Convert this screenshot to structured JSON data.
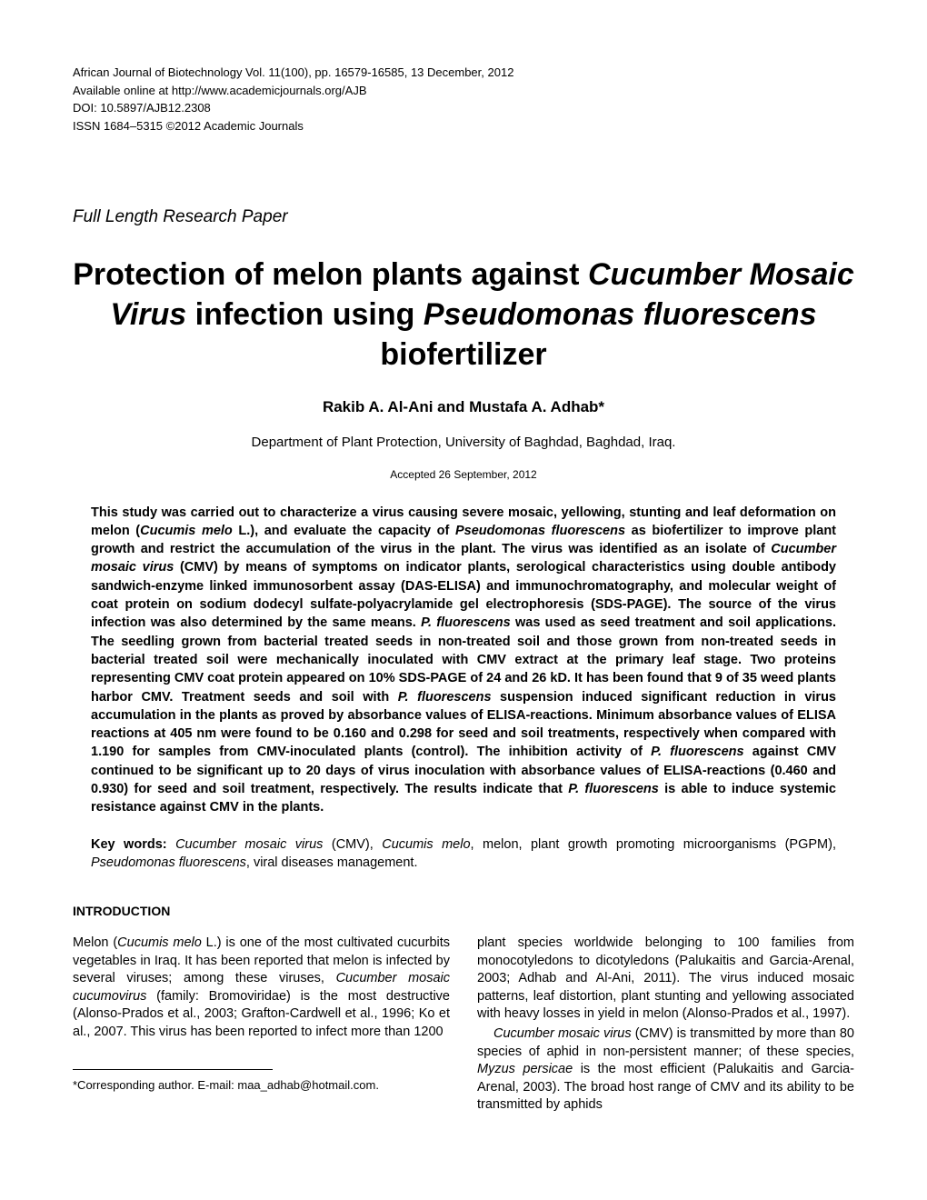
{
  "header": {
    "line1": "African Journal of Biotechnology Vol. 11(100), pp. 16579-16585, 13 December, 2012",
    "line2": "Available online at http://www.academicjournals.org/AJB",
    "line3": "DOI: 10.5897/AJB12.2308",
    "line4": "ISSN 1684–5315 ©2012 Academic Journals"
  },
  "paper_type": "Full Length Research Paper",
  "title": {
    "part1": "Protection of melon plants against ",
    "italic1": "Cucumber Mosaic Virus",
    "part2": " infection using ",
    "italic2": "Pseudomonas fluorescens",
    "part3": " biofertilizer"
  },
  "authors": "Rakib A. Al-Ani and Mustafa A. Adhab*",
  "affiliation": "Department of Plant Protection, University of Baghdad, Baghdad, Iraq.",
  "accepted": "Accepted 26 September, 2012",
  "abstract": {
    "t1": "This study was carried out to characterize a virus causing severe mosaic, yellowing, stunting and leaf deformation on melon (",
    "i1": "Cucumis melo",
    "t2": " L.), and evaluate the capacity of ",
    "i2": "Pseudomonas fluorescens",
    "t3": " as biofertilizer to improve plant growth and restrict the accumulation of the virus in the plant. The virus was identified as an isolate of ",
    "i3": "Cucumber mosaic virus",
    "t4": " (CMV) by means of symptoms on indicator plants, serological characteristics using double antibody sandwich-enzyme linked immunosorbent assay (DAS-ELISA) and immunochromatography, and molecular weight of coat protein on sodium dodecyl sulfate-polyacrylamide gel electrophoresis (SDS-PAGE). The source of the virus infection was also determined by the same means. ",
    "i4": "P. fluorescens",
    "t5": " was used as seed treatment and soil applications. The seedling grown from bacterial treated seeds in non-treated soil and those grown from non-treated seeds in bacterial treated soil were mechanically inoculated with CMV extract at the primary leaf stage. Two proteins representing CMV coat protein appeared on 10% SDS-PAGE of 24 and 26 kD. It has been found that 9 of 35 weed plants harbor CMV. Treatment seeds and soil with ",
    "i5": "P. fluorescens",
    "t6": " suspension induced significant reduction in virus accumulation in the plants as proved by absorbance values of ELISA-reactions. Minimum absorbance values of ELISA reactions at 405 nm were found to be 0.160 and 0.298 for seed and soil treatments, respectively when compared with 1.190 for samples from CMV-inoculated plants (control). The inhibition activity of ",
    "i6": "P. fluorescens",
    "t7": " against CMV continued to be significant up to 20 days of virus inoculation with absorbance values of ELISA-reactions (0.460 and 0.930) for seed and soil treatment, respectively. The results indicate that ",
    "i7": "P. fluorescens",
    "t8": " is able to induce systemic resistance against CMV in the plants."
  },
  "keywords": {
    "label": "Key words:",
    "i1": "Cucumber mosaic virus",
    "t1": " (CMV), ",
    "i2": "Cucumis melo",
    "t2": ", melon, plant growth promoting microorganisms (PGPM), ",
    "i3": "Pseudomonas fluorescens",
    "t3": ", viral diseases management."
  },
  "section_heading": "INTRODUCTION",
  "intro": {
    "col1": {
      "t1": "Melon (",
      "i1": "Cucumis melo",
      "t2": " L.) is one of the most cultivated cucurbits vegetables in Iraq. It has been reported that melon is infected by several viruses; among these viruses, ",
      "i2": "Cucumber mosaic cucumovirus",
      "t3": " (family: Bromoviridae) is the most destructive (Alonso-Prados et al., 2003; Grafton-Cardwell et al., 1996; Ko et al., 2007. This virus has been  reported  to  infect  more  than  1200"
    },
    "col2": {
      "p1": "plant species worldwide belonging to 100 families from monocotyledons to dicotyledons (Palukaitis and Garcia-Arenal, 2003; Adhab and Al-Ani, 2011). The virus induced mosaic patterns, leaf distortion, plant stunting and yellowing associated with heavy losses in yield in melon (Alonso-Prados et al., 1997).",
      "p2a": "Cucumber mosaic virus",
      "p2b": " (CMV) is transmitted by more than 80 species of aphid in non-persistent manner; of these species, ",
      "p2c": "Myzus persicae",
      "p2d": " is the most efficient (Palukaitis and Garcia-Arenal, 2003). The broad host range of CMV and its ability to be  transmitted  by  aphids"
    }
  },
  "footnote": "*Corresponding author. E-mail: maa_adhab@hotmail.com."
}
